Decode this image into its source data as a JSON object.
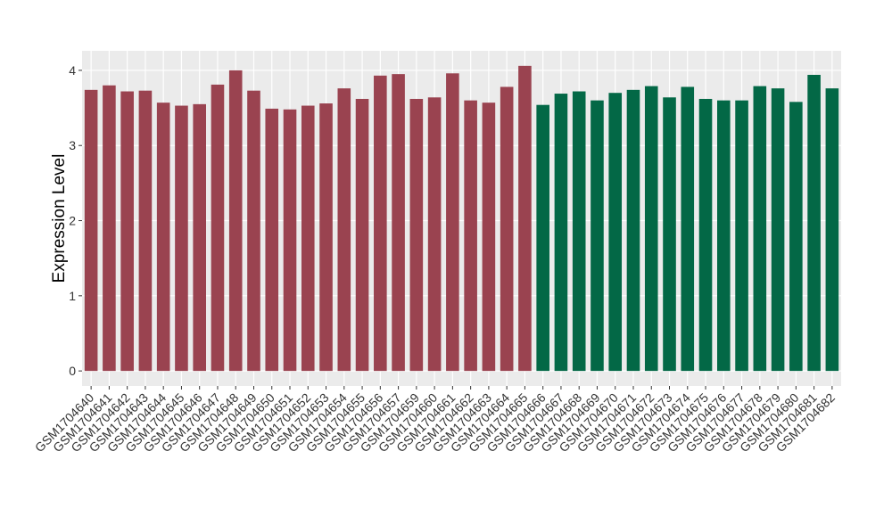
{
  "chart_data": {
    "type": "bar",
    "y_label": "Expression Level",
    "categories": [
      "GSM1704640",
      "GSM1704641",
      "GSM1704642",
      "GSM1704643",
      "GSM1704644",
      "GSM1704645",
      "GSM1704646",
      "GSM1704647",
      "GSM1704648",
      "GSM1704649",
      "GSM1704650",
      "GSM1704651",
      "GSM1704652",
      "GSM1704653",
      "GSM1704654",
      "GSM1704655",
      "GSM1704656",
      "GSM1704657",
      "GSM1704659",
      "GSM1704660",
      "GSM1704661",
      "GSM1704662",
      "GSM1704663",
      "GSM1704664",
      "GSM1704665",
      "GSM1704666",
      "GSM1704667",
      "GSM1704668",
      "GSM1704669",
      "GSM1704670",
      "GSM1704671",
      "GSM1704672",
      "GSM1704673",
      "GSM1704674",
      "GSM1704675",
      "GSM1704676",
      "GSM1704677",
      "GSM1704678",
      "GSM1704679",
      "GSM1704680",
      "GSM1704681",
      "GSM1704682"
    ],
    "values": [
      3.74,
      3.8,
      3.72,
      3.73,
      3.57,
      3.53,
      3.55,
      3.81,
      4.0,
      3.73,
      3.49,
      3.48,
      3.53,
      3.56,
      3.76,
      3.62,
      3.93,
      3.95,
      3.62,
      3.64,
      3.96,
      3.6,
      3.57,
      3.78,
      4.06,
      3.54,
      3.69,
      3.72,
      3.6,
      3.7,
      3.74,
      3.79,
      3.64,
      3.78,
      3.62,
      3.6,
      3.6,
      3.79,
      3.76,
      3.58,
      3.94,
      3.76
    ],
    "colors": [
      "#9a4350",
      "#9a4350",
      "#9a4350",
      "#9a4350",
      "#9a4350",
      "#9a4350",
      "#9a4350",
      "#9a4350",
      "#9a4350",
      "#9a4350",
      "#9a4350",
      "#9a4350",
      "#9a4350",
      "#9a4350",
      "#9a4350",
      "#9a4350",
      "#9a4350",
      "#9a4350",
      "#9a4350",
      "#9a4350",
      "#9a4350",
      "#9a4350",
      "#9a4350",
      "#9a4350",
      "#9a4350",
      "#036846",
      "#036846",
      "#036846",
      "#036846",
      "#036846",
      "#036846",
      "#036846",
      "#036846",
      "#036846",
      "#036846",
      "#036846",
      "#036846",
      "#036846",
      "#036846",
      "#036846",
      "#036846",
      "#036846"
    ],
    "ylim": [
      -0.2,
      4.26
    ],
    "yticks": [
      0,
      1,
      2,
      3,
      4
    ],
    "grid": true
  }
}
